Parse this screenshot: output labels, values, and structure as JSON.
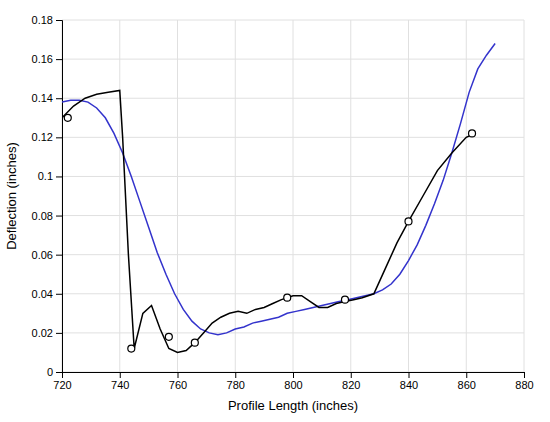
{
  "chart_data": {
    "type": "line",
    "xlabel": "Profile Length (inches)",
    "ylabel": "Deflection (inches)",
    "xlim": [
      720,
      880
    ],
    "ylim": [
      0,
      0.18
    ],
    "xticks": [
      720,
      740,
      760,
      780,
      800,
      820,
      840,
      860,
      880
    ],
    "yticks": [
      0,
      0.02,
      0.04,
      0.06,
      0.08,
      0.1,
      0.12,
      0.14,
      0.16,
      0.18
    ],
    "grid": true,
    "series": [
      {
        "type": "line",
        "color": "#3333cc",
        "x": [
          720,
          723,
          726,
          729,
          732,
          735,
          738,
          741,
          744,
          747,
          750,
          753,
          756,
          759,
          762,
          765,
          768,
          771,
          774,
          777,
          780,
          783,
          786,
          789,
          792,
          795,
          798,
          801,
          804,
          807,
          810,
          813,
          816,
          819,
          822,
          825,
          828,
          831,
          834,
          837,
          840,
          843,
          846,
          849,
          852,
          855,
          858,
          861,
          864,
          867,
          870
        ],
        "values": [
          0.138,
          0.139,
          0.139,
          0.138,
          0.135,
          0.13,
          0.122,
          0.112,
          0.1,
          0.087,
          0.074,
          0.061,
          0.05,
          0.04,
          0.032,
          0.026,
          0.022,
          0.02,
          0.019,
          0.02,
          0.022,
          0.023,
          0.025,
          0.026,
          0.027,
          0.028,
          0.03,
          0.031,
          0.032,
          0.033,
          0.034,
          0.035,
          0.036,
          0.037,
          0.038,
          0.039,
          0.04,
          0.042,
          0.045,
          0.05,
          0.057,
          0.065,
          0.075,
          0.086,
          0.098,
          0.112,
          0.127,
          0.143,
          0.155,
          0.162,
          0.168
        ]
      },
      {
        "type": "line",
        "color": "#000000",
        "x": [
          720,
          724,
          728,
          732,
          736,
          740,
          741,
          743,
          745,
          748,
          751,
          754,
          757,
          760,
          763,
          766,
          769,
          772,
          775,
          778,
          781,
          784,
          787,
          790,
          793,
          796,
          800,
          803,
          806,
          809,
          812,
          815,
          818,
          821,
          824,
          828,
          832,
          836,
          840,
          845,
          850,
          855,
          860,
          863
        ],
        "values": [
          0.13,
          0.136,
          0.14,
          0.142,
          0.143,
          0.144,
          0.12,
          0.06,
          0.012,
          0.03,
          0.034,
          0.022,
          0.012,
          0.01,
          0.011,
          0.015,
          0.02,
          0.025,
          0.028,
          0.03,
          0.031,
          0.03,
          0.032,
          0.033,
          0.035,
          0.037,
          0.039,
          0.039,
          0.036,
          0.033,
          0.033,
          0.035,
          0.036,
          0.037,
          0.038,
          0.04,
          0.053,
          0.066,
          0.077,
          0.09,
          0.103,
          0.112,
          0.12,
          0.122
        ]
      },
      {
        "type": "scatter",
        "color": "#000000",
        "marker": "open-circle",
        "x": [
          722,
          744,
          757,
          766,
          798,
          818,
          840,
          862
        ],
        "values": [
          0.13,
          0.012,
          0.018,
          0.015,
          0.038,
          0.037,
          0.077,
          0.122
        ]
      }
    ]
  }
}
